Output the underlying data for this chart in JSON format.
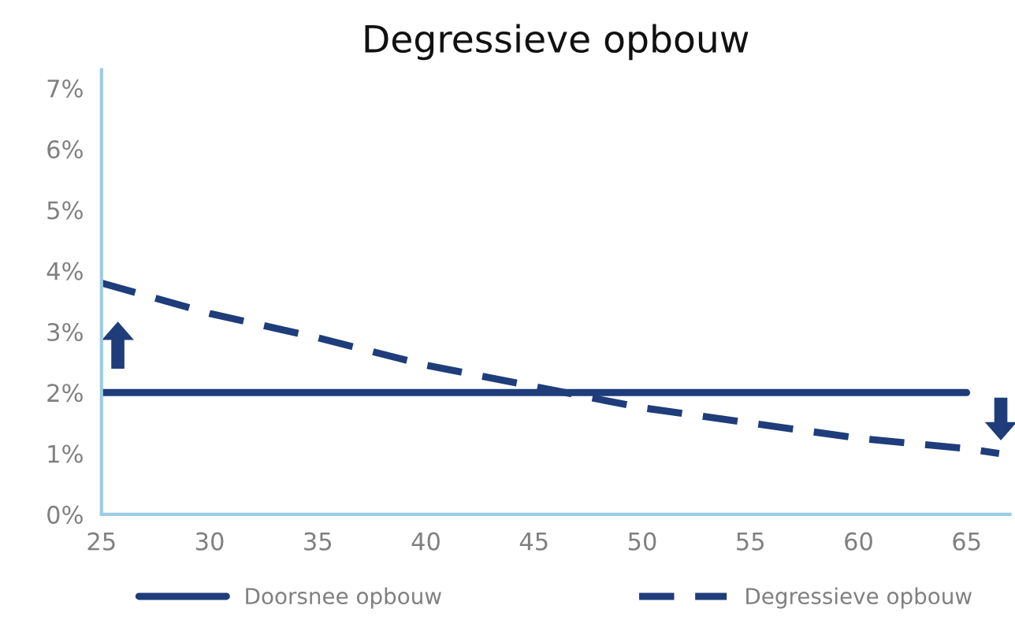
{
  "chart_data": {
    "type": "line",
    "title": "Degressieve opbouw",
    "x": [
      25,
      65
    ],
    "series": [
      {
        "name": "Doorsnee opbouw",
        "color": "#1f3d7a",
        "line_style": "solid",
        "values": [
          2.0,
          2.0
        ]
      },
      {
        "name": "Degressieve opbouw",
        "color": "#1f3d7a",
        "line_style": "dashed",
        "x": [
          25,
          30,
          35,
          40,
          45,
          50,
          55,
          60,
          65,
          66.5
        ],
        "values": [
          3.8,
          3.3,
          2.9,
          2.45,
          2.1,
          1.75,
          1.5,
          1.25,
          1.08,
          1.0
        ]
      }
    ],
    "xlim": [
      25,
      67
    ],
    "xticks": [
      25,
      30,
      35,
      40,
      45,
      50,
      55,
      60,
      65
    ],
    "ylim": [
      0,
      7.3
    ],
    "yticks": [
      {
        "value": 0,
        "label": "0%"
      },
      {
        "value": 1,
        "label": "1%"
      },
      {
        "value": 2,
        "label": "2%"
      },
      {
        "value": 3,
        "label": "3%"
      },
      {
        "value": 4,
        "label": "4%"
      },
      {
        "value": 5,
        "label": "5%"
      },
      {
        "value": 6,
        "label": "6%"
      },
      {
        "value": 7,
        "label": "7%"
      }
    ],
    "grid": false,
    "legend": "bottom",
    "marker": "none"
  }
}
